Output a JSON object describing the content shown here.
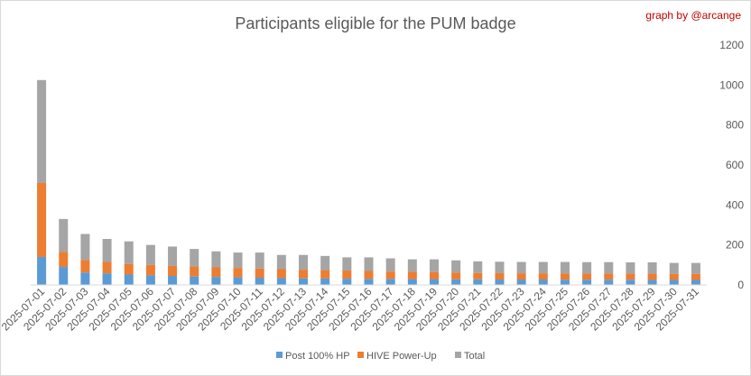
{
  "chart_data": {
    "type": "bar",
    "stacked": true,
    "title": "Participants eligible for the PUM badge",
    "credit": "graph by @arcange",
    "categories": [
      "2025-07-01",
      "2025-07-02",
      "2025-07-03",
      "2025-07-04",
      "2025-07-05",
      "2025-07-06",
      "2025-07-07",
      "2025-07-08",
      "2025-07-09",
      "2025-07-10",
      "2025-07-11",
      "2025-07-12",
      "2025-07-13",
      "2025-07-14",
      "2025-07-15",
      "2025-07-16",
      "2025-07-17",
      "2025-07-18",
      "2025-07-19",
      "2025-07-20",
      "2025-07-21",
      "2025-07-22",
      "2025-07-23",
      "2025-07-24",
      "2025-07-25",
      "2025-07-26",
      "2025-07-27",
      "2025-07-28",
      "2025-07-29",
      "2025-07-30",
      "2025-07-31"
    ],
    "series": [
      {
        "name": "Post 100% HP",
        "color": "#5b9bd5",
        "values": [
          140,
          90,
          62,
          58,
          52,
          48,
          45,
          42,
          40,
          38,
          36,
          34,
          33,
          32,
          31,
          30,
          30,
          29,
          29,
          28,
          28,
          27,
          27,
          27,
          26,
          26,
          26,
          26,
          25,
          25,
          25
        ]
      },
      {
        "name": "HIVE Power-Up",
        "color": "#ed7d31",
        "values": [
          510,
          165,
          125,
          115,
          105,
          100,
          95,
          92,
          88,
          85,
          82,
          79,
          76,
          74,
          72,
          70,
          67,
          65,
          64,
          62,
          60,
          59,
          58,
          58,
          57,
          57,
          57,
          56,
          56,
          55,
          55
        ]
      },
      {
        "name": "Total",
        "color": "#a5a5a5",
        "values": [
          1025,
          330,
          255,
          230,
          218,
          200,
          192,
          180,
          168,
          162,
          162,
          150,
          150,
          145,
          138,
          138,
          133,
          128,
          128,
          123,
          118,
          116,
          115,
          115,
          115,
          114,
          114,
          113,
          113,
          110,
          110
        ]
      }
    ],
    "y_axis": {
      "min": 0,
      "max": 1200,
      "ticks": [
        0,
        200,
        400,
        600,
        800,
        1000,
        1200
      ],
      "position": "right"
    },
    "grid": false,
    "legend": "bottom"
  }
}
